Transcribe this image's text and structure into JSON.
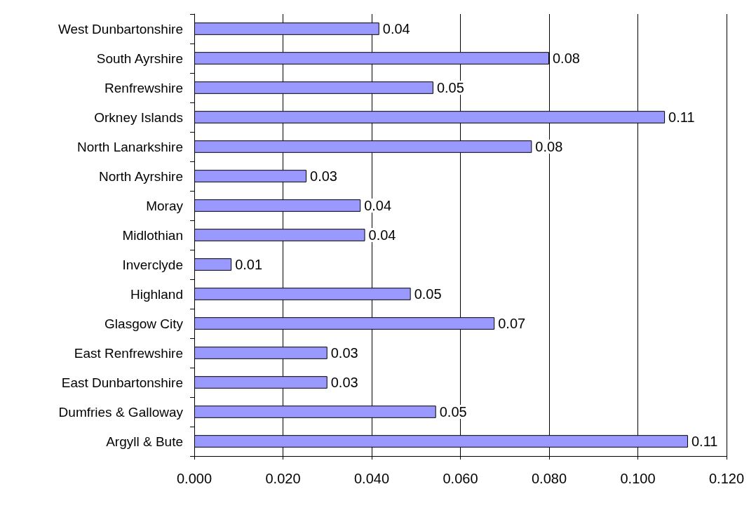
{
  "chart_data": {
    "type": "bar",
    "orientation": "horizontal",
    "categories": [
      "West Dunbartonshire",
      "South Ayrshire",
      "Renfrewshire",
      "Orkney Islands",
      "North Lanarkshire",
      "North Ayrshire",
      "Moray",
      "Midlothian",
      "Inverclyde",
      "Highland",
      "Glasgow City",
      "East Renfrewshire",
      "East Dunbartonshire",
      "Dumfries & Galloway",
      "Argyll & Bute"
    ],
    "values": [
      0.0417,
      0.08,
      0.0539,
      0.1061,
      0.0761,
      0.0253,
      0.0375,
      0.0385,
      0.0084,
      0.0488,
      0.0677,
      0.03,
      0.03,
      0.0545,
      0.1113
    ],
    "value_labels": [
      "0.04",
      "0.08",
      "0.05",
      "0.11",
      "0.08",
      "0.03",
      "0.04",
      "0.04",
      "0.01",
      "0.05",
      "0.07",
      "0.03",
      "0.03",
      "0.05",
      "0.11"
    ],
    "color": "#9999ff",
    "xlim": [
      0,
      0.12
    ],
    "xticks": [
      {
        "value": 0,
        "label": "0.000"
      },
      {
        "value": 0.02,
        "label": "0.020"
      },
      {
        "value": 0.04,
        "label": "0.040"
      },
      {
        "value": 0.06,
        "label": "0.060"
      },
      {
        "value": 0.08,
        "label": "0.080"
      },
      {
        "value": 0.1,
        "label": "0.100"
      },
      {
        "value": 0.12,
        "label": "0.120"
      }
    ],
    "grid": "x"
  }
}
